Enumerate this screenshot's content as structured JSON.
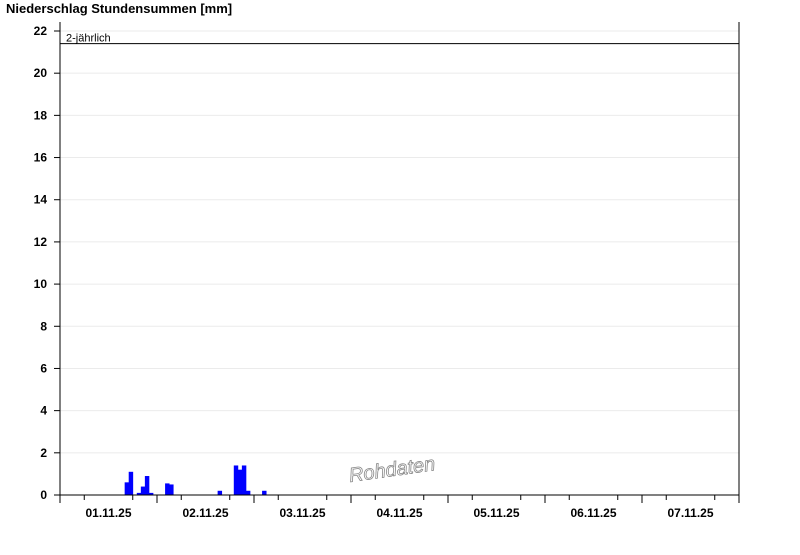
{
  "chart_data": {
    "type": "bar",
    "title": "Niederschlag Stundensummen [mm]",
    "xlabel": "",
    "ylabel": "",
    "ylim": [
      0,
      22
    ],
    "yticks": [
      0,
      2,
      4,
      6,
      8,
      10,
      12,
      14,
      16,
      18,
      20,
      22
    ],
    "xrange": [
      "01.11.25 00:00",
      "08.11.25 00:00"
    ],
    "xtick_labels": [
      "01.11.25",
      "02.11.25",
      "03.11.25",
      "04.11.25",
      "05.11.25",
      "06.11.25",
      "07.11.25"
    ],
    "grid": true,
    "bar_color": "#0000ff",
    "threshold": {
      "label": "2-jährlich",
      "value": 21.4,
      "color": "#000000"
    },
    "watermark": "Rohdaten",
    "series": [
      {
        "x": [
          "01.11.25 16:00",
          "01.11.25 17:00",
          "01.11.25 19:00",
          "01.11.25 20:00",
          "01.11.25 21:00",
          "01.11.25 22:00",
          "02.11.25 02:00",
          "02.11.25 03:00",
          "02.11.25 15:00",
          "02.11.25 19:00",
          "02.11.25 20:00",
          "02.11.25 21:00",
          "02.11.25 22:00",
          "03.11.25 02:00"
        ],
        "values": [
          0.6,
          1.1,
          0.1,
          0.4,
          0.9,
          0.1,
          0.55,
          0.5,
          0.2,
          1.4,
          1.2,
          1.4,
          0.2,
          0.2
        ]
      }
    ]
  }
}
